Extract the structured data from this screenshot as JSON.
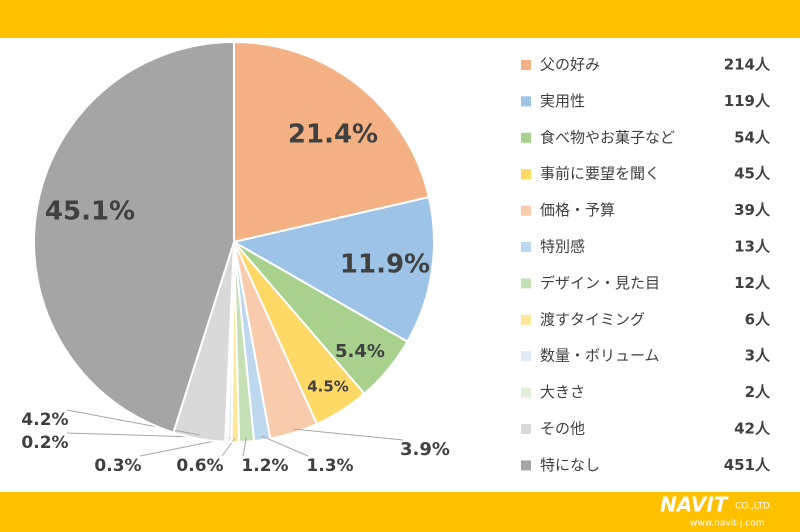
{
  "chart_data": {
    "type": "pie",
    "categories": [
      "父の好み",
      "実用性",
      "食べ物やお菓子など",
      "事前に要望を聞く",
      "価格・予算",
      "特別感",
      "デザイン・見た目",
      "渡すタイミング",
      "数量・ボリューム",
      "大きさ",
      "その他",
      "特になし"
    ],
    "values": [
      21.4,
      11.9,
      5.4,
      4.5,
      3.9,
      1.3,
      1.2,
      0.6,
      0.3,
      0.2,
      4.2,
      45.1
    ],
    "value_labels": [
      "21.4%",
      "11.9%",
      "5.4%",
      "4.5%",
      "3.9%",
      "1.3%",
      "1.2%",
      "0.6%",
      "0.3%",
      "0.2%",
      "4.2%",
      "45.1%"
    ],
    "counts": [
      214,
      119,
      54,
      45,
      39,
      13,
      12,
      6,
      3,
      2,
      42,
      451
    ],
    "count_labels": [
      "214人",
      "119人",
      "54人",
      "45人",
      "39人",
      "13人",
      "12人",
      "6人",
      "3人",
      "2人",
      "42人",
      "451人"
    ],
    "colors": [
      "#f4b183",
      "#9dc3e6",
      "#a9d18e",
      "#ffd966",
      "#f8cbad",
      "#bdd7ee",
      "#c5e0b4",
      "#ffe699",
      "#deebf7",
      "#e2f0d9",
      "#d9d9d9",
      "#a5a5a5"
    ],
    "legend": "right"
  },
  "footer": {
    "logo": "NAVIT",
    "company_suffix": "CO.,LTD.",
    "url": "www.navit-j.com"
  }
}
